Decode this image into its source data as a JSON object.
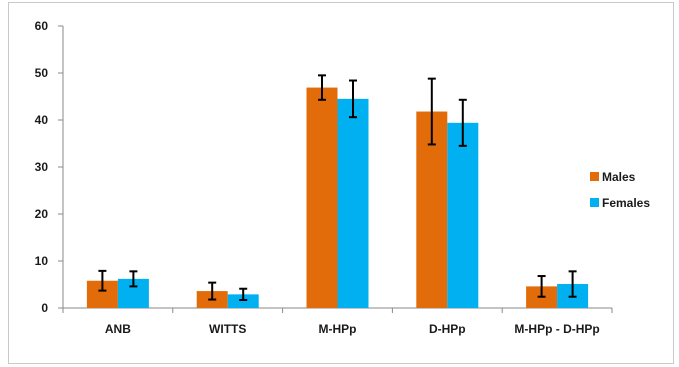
{
  "chart_data": {
    "type": "bar",
    "title": "",
    "xlabel": "",
    "ylabel": "",
    "ylim": [
      0,
      60
    ],
    "yticks": [
      0,
      10,
      20,
      30,
      40,
      50,
      60
    ],
    "grid": false,
    "legend_position": "right",
    "error_bars": true,
    "categories": [
      "ANB",
      "WITTS",
      "M-HPp",
      "D-HPp",
      "M-HPp - D-HPp"
    ],
    "series": [
      {
        "name": "Males",
        "color": "#E36C0A",
        "values": [
          5.8,
          3.6,
          46.9,
          41.8,
          4.6
        ],
        "error": [
          2.1,
          1.8,
          2.6,
          7.0,
          2.2
        ]
      },
      {
        "name": "Females",
        "color": "#00B0F0",
        "values": [
          6.2,
          2.9,
          44.5,
          39.4,
          5.1
        ],
        "error": [
          1.6,
          1.2,
          3.9,
          4.9,
          2.7
        ]
      }
    ]
  }
}
